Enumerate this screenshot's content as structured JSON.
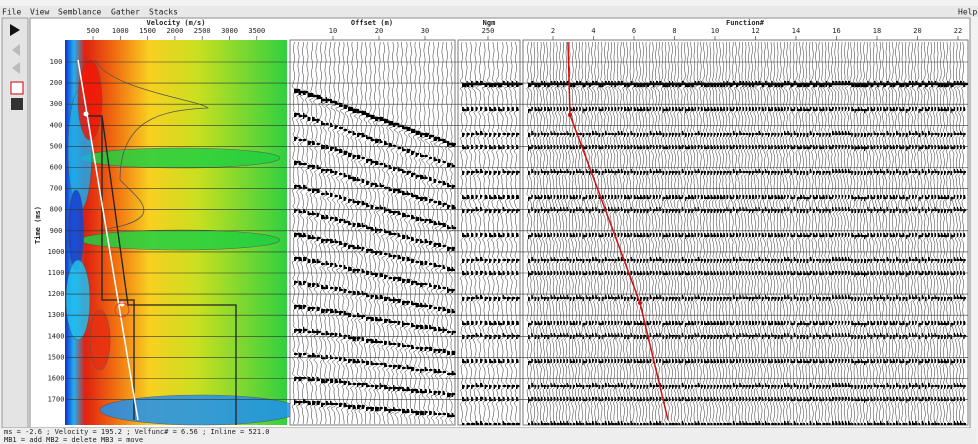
{
  "menu": [
    "File",
    "View",
    "Semblance",
    "Gather",
    "Stacks"
  ],
  "help": "Help",
  "velocity_panel": {
    "title": "Velocity (m/s)",
    "ticks": [
      "500",
      "1000",
      "1500",
      "2000",
      "2500",
      "3000",
      "3500"
    ]
  },
  "offset_panel": {
    "title": "Offset (m)",
    "ticks": [
      "10",
      "20",
      "30"
    ]
  },
  "ngm_panel": {
    "title": "Ngm",
    "ticks": [
      "250"
    ]
  },
  "function_panel": {
    "title": "Function#",
    "ticks": [
      "2",
      "4",
      "6",
      "8",
      "10",
      "12",
      "14",
      "16",
      "18",
      "20",
      "22"
    ]
  },
  "time_axis": {
    "title": "Time (ms)",
    "ticks": [
      "100",
      "200",
      "300",
      "400",
      "500",
      "600",
      "700",
      "800",
      "900",
      "1000",
      "1100",
      "1200",
      "1300",
      "1400",
      "1500",
      "1600",
      "1700"
    ]
  },
  "status": [
    "ms = -2.6 ; Velocity = 195.2 ; Velfunc# = 6.56 ; Inline = 521.0",
    "MB1 = add  MB2 = delete  MB3 = move"
  ]
}
